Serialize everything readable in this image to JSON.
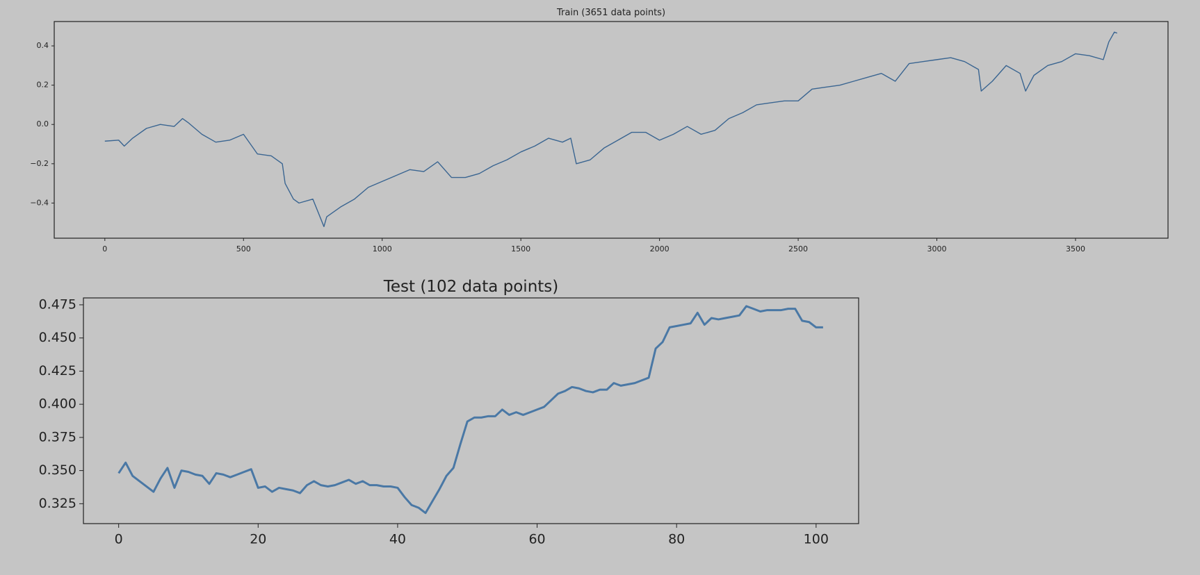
{
  "chart_data": [
    {
      "type": "line",
      "title": "Train (3651 data points)",
      "color": "#3a6591",
      "x": [
        0,
        50,
        70,
        100,
        150,
        200,
        250,
        280,
        300,
        350,
        400,
        450,
        500,
        550,
        600,
        640,
        650,
        680,
        700,
        750,
        790,
        800,
        850,
        900,
        950,
        1000,
        1050,
        1100,
        1150,
        1200,
        1250,
        1300,
        1350,
        1400,
        1450,
        1500,
        1550,
        1600,
        1650,
        1680,
        1700,
        1750,
        1800,
        1850,
        1900,
        1950,
        2000,
        2050,
        2100,
        2150,
        2200,
        2250,
        2300,
        2350,
        2400,
        2450,
        2500,
        2550,
        2600,
        2650,
        2700,
        2750,
        2800,
        2850,
        2900,
        2950,
        3000,
        3050,
        3100,
        3150,
        3160,
        3200,
        3250,
        3300,
        3320,
        3350,
        3400,
        3450,
        3500,
        3550,
        3600,
        3620,
        3640,
        3650
      ],
      "values": [
        -0.085,
        -0.08,
        -0.11,
        -0.07,
        -0.02,
        0.0,
        -0.01,
        0.03,
        0.01,
        -0.05,
        -0.09,
        -0.08,
        -0.05,
        -0.15,
        -0.16,
        -0.2,
        -0.3,
        -0.38,
        -0.4,
        -0.38,
        -0.52,
        -0.47,
        -0.42,
        -0.38,
        -0.32,
        -0.29,
        -0.26,
        -0.23,
        -0.24,
        -0.19,
        -0.27,
        -0.27,
        -0.25,
        -0.21,
        -0.18,
        -0.14,
        -0.11,
        -0.07,
        -0.09,
        -0.07,
        -0.2,
        -0.18,
        -0.12,
        -0.08,
        -0.04,
        -0.04,
        -0.08,
        -0.05,
        -0.01,
        -0.05,
        -0.03,
        0.03,
        0.06,
        0.1,
        0.11,
        0.12,
        0.12,
        0.18,
        0.19,
        0.2,
        0.22,
        0.24,
        0.26,
        0.22,
        0.31,
        0.32,
        0.33,
        0.34,
        0.32,
        0.28,
        0.17,
        0.22,
        0.3,
        0.26,
        0.17,
        0.25,
        0.3,
        0.32,
        0.36,
        0.35,
        0.33,
        0.42,
        0.47,
        0.465
      ],
      "xlim": [
        -182.5,
        3833.5
      ],
      "ylim": [
        -0.579,
        0.524
      ],
      "xticks": [
        0,
        500,
        1000,
        1500,
        2000,
        2500,
        3000,
        3500
      ],
      "yticks": [
        {
          "value": -0.4,
          "label": "−0.4"
        },
        {
          "value": -0.2,
          "label": "−0.2"
        },
        {
          "value": 0.0,
          "label": "0.0"
        },
        0.2,
        0.4
      ]
    },
    {
      "type": "line",
      "title": "Test (102 data points)",
      "color": "#4a78a5",
      "x": [
        0,
        1,
        2,
        3,
        4,
        5,
        6,
        7,
        8,
        9,
        10,
        11,
        12,
        13,
        14,
        15,
        16,
        17,
        18,
        19,
        20,
        21,
        22,
        23,
        24,
        25,
        26,
        27,
        28,
        29,
        30,
        31,
        32,
        33,
        34,
        35,
        36,
        37,
        38,
        39,
        40,
        41,
        42,
        43,
        44,
        45,
        46,
        47,
        48,
        49,
        50,
        51,
        52,
        53,
        54,
        55,
        56,
        57,
        58,
        59,
        60,
        61,
        62,
        63,
        64,
        65,
        66,
        67,
        68,
        69,
        70,
        71,
        72,
        73,
        74,
        75,
        76,
        77,
        78,
        79,
        80,
        81,
        82,
        83,
        84,
        85,
        86,
        87,
        88,
        89,
        90,
        91,
        92,
        93,
        94,
        95,
        96,
        97,
        98,
        99,
        100,
        101
      ],
      "values": [
        0.348,
        0.356,
        0.346,
        0.342,
        0.338,
        0.334,
        0.344,
        0.352,
        0.337,
        0.35,
        0.349,
        0.347,
        0.346,
        0.34,
        0.348,
        0.347,
        0.345,
        0.347,
        0.349,
        0.351,
        0.337,
        0.338,
        0.334,
        0.337,
        0.336,
        0.335,
        0.333,
        0.339,
        0.342,
        0.339,
        0.338,
        0.339,
        0.341,
        0.343,
        0.34,
        0.342,
        0.339,
        0.339,
        0.338,
        0.338,
        0.337,
        0.33,
        0.324,
        0.322,
        0.318,
        0.327,
        0.336,
        0.346,
        0.352,
        0.37,
        0.387,
        0.39,
        0.39,
        0.391,
        0.391,
        0.396,
        0.392,
        0.394,
        0.392,
        0.394,
        0.396,
        0.398,
        0.403,
        0.408,
        0.41,
        0.413,
        0.412,
        0.41,
        0.409,
        0.411,
        0.411,
        0.416,
        0.414,
        0.415,
        0.416,
        0.418,
        0.42,
        0.442,
        0.447,
        0.458,
        0.459,
        0.46,
        0.461,
        0.469,
        0.46,
        0.465,
        0.464,
        0.465,
        0.466,
        0.467,
        0.474,
        0.472,
        0.47,
        0.471,
        0.471,
        0.471,
        0.472,
        0.472,
        0.463,
        0.462,
        0.458,
        0.458
      ],
      "xlim": [
        -5.05,
        106.1
      ],
      "ylim": [
        0.31,
        0.4802
      ],
      "xticks": [
        0,
        20,
        40,
        60,
        80,
        100
      ],
      "yticks": [
        0.325,
        {
          "value": 0.35,
          "label": "0.350"
        },
        0.375,
        {
          "value": 0.4,
          "label": "0.400"
        },
        0.425,
        {
          "value": 0.45,
          "label": "0.450"
        },
        0.475
      ]
    }
  ]
}
